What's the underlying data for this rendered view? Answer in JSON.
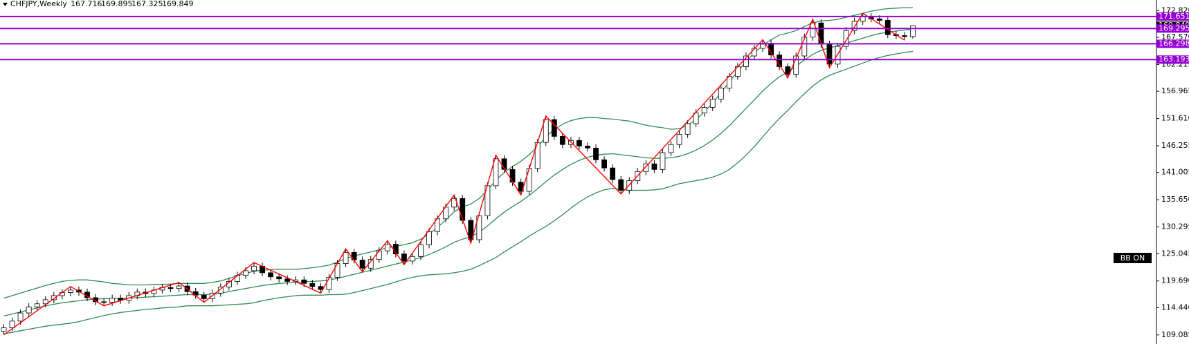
{
  "chart_data": {
    "type": "candlestick",
    "title": "CHFJPY,Weekly",
    "open": [
      109.8,
      110.5,
      111.8,
      113.4,
      114.6,
      115.2,
      116.0,
      116.8,
      117.4,
      117.9,
      117.5,
      116.4,
      115.6,
      115.5,
      116.3,
      115.9,
      116.8,
      117.5,
      117.2,
      117.9,
      118.4,
      118.2,
      118.7,
      117.6,
      116.9,
      116.2,
      117.3,
      118.5,
      119.6,
      120.8,
      121.7,
      122.6,
      121.3,
      120.5,
      120.1,
      119.6,
      119.9,
      119.2,
      118.6,
      118.0,
      120.4,
      123.1,
      125.3,
      123.8,
      122.2,
      123.9,
      125.6,
      126.9,
      125.0,
      123.6,
      124.5,
      126.8,
      129.4,
      131.9,
      134.2,
      135.9,
      131.6,
      127.8,
      132.5,
      138.4,
      143.7,
      141.6,
      139.1,
      137.3,
      141.8,
      146.9,
      151.4,
      148.1,
      146.5,
      147.3,
      146.2,
      145.8,
      143.5,
      141.9,
      139.6,
      137.5,
      139.4,
      141.2,
      142.7,
      141.6,
      144.9,
      146.5,
      148.5,
      150.6,
      152.7,
      153.8,
      155.4,
      157.6,
      159.9,
      161.8,
      163.9,
      165.4,
      166.4,
      164.1,
      161.8,
      160.3,
      163.9,
      167.6,
      170.4,
      166.2,
      162.3,
      165.8,
      168.9,
      170.7,
      171.6,
      171.2,
      170.9,
      168.1,
      167.9,
      167.716
    ],
    "high": [
      111.2,
      112.5,
      114.1,
      115.3,
      115.9,
      116.7,
      117.5,
      118.1,
      118.6,
      118.6,
      118.2,
      117.1,
      116.3,
      117.0,
      117.0,
      117.5,
      118.2,
      118.2,
      118.6,
      119.1,
      119.1,
      119.4,
      119.4,
      118.3,
      117.6,
      118.0,
      119.2,
      120.3,
      121.5,
      122.4,
      123.3,
      123.3,
      122.0,
      121.2,
      120.8,
      120.6,
      120.6,
      119.9,
      119.3,
      121.1,
      123.8,
      126.0,
      126.0,
      124.5,
      124.6,
      126.3,
      127.6,
      127.6,
      125.7,
      125.2,
      127.5,
      130.1,
      132.6,
      134.9,
      136.6,
      136.6,
      132.3,
      133.2,
      139.1,
      144.4,
      144.4,
      142.3,
      139.8,
      142.5,
      147.6,
      152.1,
      152.1,
      148.8,
      148.0,
      148.0,
      146.9,
      146.5,
      144.2,
      142.6,
      140.3,
      140.1,
      141.9,
      143.4,
      143.4,
      145.6,
      147.2,
      149.2,
      151.3,
      153.4,
      154.5,
      156.1,
      158.3,
      160.6,
      162.5,
      164.6,
      166.1,
      167.1,
      167.1,
      164.8,
      162.5,
      164.6,
      168.3,
      171.1,
      171.1,
      166.9,
      166.5,
      169.6,
      171.4,
      172.3,
      172.3,
      171.9,
      171.6,
      168.8,
      168.6,
      169.895
    ],
    "low": [
      109.1,
      109.8,
      111.1,
      112.7,
      113.9,
      114.5,
      115.3,
      116.1,
      116.7,
      116.8,
      115.7,
      114.9,
      114.8,
      114.8,
      115.2,
      115.2,
      116.1,
      116.5,
      116.5,
      117.2,
      117.5,
      117.5,
      116.9,
      116.2,
      115.5,
      115.5,
      116.6,
      117.8,
      118.9,
      120.1,
      121.0,
      120.6,
      119.8,
      119.4,
      118.9,
      118.9,
      118.5,
      117.9,
      117.3,
      117.3,
      119.7,
      122.4,
      123.1,
      121.5,
      121.5,
      123.2,
      124.9,
      124.3,
      122.9,
      122.9,
      123.8,
      126.1,
      128.7,
      131.2,
      133.5,
      130.9,
      127.1,
      127.1,
      131.8,
      137.7,
      140.9,
      138.4,
      136.6,
      136.6,
      141.1,
      146.2,
      147.4,
      145.8,
      145.8,
      145.5,
      145.1,
      142.8,
      141.2,
      138.9,
      136.8,
      136.8,
      138.7,
      140.5,
      140.9,
      140.9,
      144.2,
      145.8,
      147.8,
      149.9,
      152.0,
      153.1,
      154.7,
      156.9,
      159.2,
      161.1,
      163.2,
      164.7,
      163.4,
      161.1,
      159.6,
      159.6,
      163.2,
      166.9,
      165.5,
      161.6,
      161.6,
      165.1,
      168.2,
      170.0,
      170.5,
      170.2,
      167.4,
      167.2,
      167.0,
      167.325
    ],
    "close": [
      110.5,
      111.8,
      113.4,
      114.6,
      115.2,
      116.0,
      116.8,
      117.4,
      117.9,
      117.5,
      116.4,
      115.6,
      115.5,
      116.3,
      115.9,
      116.8,
      117.5,
      117.2,
      117.9,
      118.4,
      118.2,
      118.7,
      117.6,
      116.9,
      116.2,
      117.3,
      118.5,
      119.6,
      120.8,
      121.7,
      122.6,
      121.3,
      120.5,
      120.1,
      119.6,
      119.9,
      119.2,
      118.6,
      118.0,
      120.4,
      123.1,
      125.3,
      123.8,
      122.2,
      123.9,
      125.6,
      126.9,
      125.0,
      123.6,
      124.5,
      126.8,
      129.4,
      131.9,
      134.2,
      135.9,
      131.6,
      127.8,
      132.5,
      138.4,
      143.7,
      141.6,
      139.1,
      137.3,
      141.8,
      146.9,
      151.4,
      148.1,
      146.5,
      147.3,
      146.2,
      145.8,
      143.5,
      141.9,
      139.6,
      137.5,
      139.4,
      141.2,
      142.7,
      141.6,
      144.9,
      146.5,
      148.5,
      150.6,
      152.7,
      153.8,
      155.4,
      157.6,
      159.9,
      161.8,
      163.9,
      165.4,
      166.4,
      164.1,
      161.8,
      160.3,
      163.9,
      167.6,
      170.4,
      166.2,
      162.3,
      165.8,
      168.9,
      170.7,
      171.6,
      171.2,
      170.9,
      168.1,
      167.9,
      167.7,
      169.849
    ],
    "up_color": "#ffffff",
    "down_color": "#000000",
    "bands": {
      "color": "#2e8b57",
      "upper": [
        116.3,
        116.8,
        117.3,
        117.8,
        118.3,
        118.8,
        119.2,
        119.6,
        119.8,
        119.9,
        119.9,
        119.7,
        119.5,
        119.2,
        119.1,
        118.9,
        118.9,
        118.9,
        119.0,
        119.0,
        119.1,
        119.2,
        119.2,
        119.2,
        119.2,
        119.4,
        119.7,
        120.2,
        120.7,
        121.2,
        121.6,
        121.8,
        121.9,
        122.0,
        122.0,
        122.0,
        122.1,
        122.3,
        122.5,
        122.8,
        123.4,
        124.1,
        124.6,
        125.0,
        125.4,
        125.8,
        126.2,
        126.5,
        126.8,
        127.2,
        127.9,
        128.9,
        130.2,
        131.7,
        133.3,
        134.2,
        134.8,
        135.9,
        137.5,
        139.5,
        141.0,
        142.2,
        143.2,
        144.5,
        146.1,
        148.0,
        149.5,
        150.5,
        151.2,
        151.6,
        151.8,
        151.8,
        151.6,
        151.5,
        151.3,
        151.1,
        150.7,
        150.3,
        150.0,
        149.8,
        149.5,
        149.6,
        150.3,
        151.4,
        152.9,
        154.7,
        156.7,
        158.8,
        160.9,
        162.8,
        164.5,
        166.0,
        167.1,
        168.0,
        168.4,
        168.9,
        169.7,
        170.4,
        170.8,
        170.9,
        171.1,
        171.5,
        171.9,
        172.3,
        172.7,
        173.0,
        173.2,
        173.3,
        173.4,
        173.4
      ],
      "middle": [
        112.8,
        113.2,
        113.6,
        114.0,
        114.4,
        114.8,
        115.1,
        115.4,
        115.6,
        115.8,
        116.0,
        116.1,
        116.2,
        116.2,
        116.3,
        116.3,
        116.4,
        116.5,
        116.6,
        116.7,
        116.8,
        116.9,
        117.0,
        117.0,
        117.0,
        117.1,
        117.3,
        117.6,
        117.9,
        118.2,
        118.5,
        118.8,
        119.0,
        119.2,
        119.3,
        119.4,
        119.5,
        119.6,
        119.7,
        119.9,
        120.2,
        120.6,
        121.0,
        121.4,
        121.8,
        122.2,
        122.6,
        123.0,
        123.4,
        123.8,
        124.3,
        124.9,
        125.6,
        126.4,
        127.3,
        127.9,
        128.4,
        129.3,
        130.5,
        131.9,
        133.2,
        134.3,
        135.3,
        136.5,
        137.8,
        139.2,
        140.5,
        141.6,
        142.6,
        143.4,
        144.0,
        144.4,
        144.6,
        144.7,
        144.5,
        144.3,
        144.1,
        143.9,
        143.8,
        143.8,
        143.9,
        144.2,
        144.7,
        145.4,
        146.3,
        147.4,
        148.7,
        150.2,
        151.9,
        153.6,
        155.3,
        157.0,
        158.5,
        159.8,
        160.8,
        161.9,
        163.1,
        164.2,
        165.0,
        165.5,
        165.9,
        166.4,
        166.9,
        167.4,
        167.9,
        168.3,
        168.6,
        168.8,
        169.0,
        169.1
      ],
      "lower": [
        109.3,
        109.6,
        109.9,
        110.2,
        110.5,
        110.8,
        111.0,
        111.2,
        111.4,
        111.7,
        112.1,
        112.5,
        112.9,
        113.2,
        113.5,
        113.7,
        113.9,
        114.1,
        114.2,
        114.4,
        114.5,
        114.6,
        114.8,
        114.8,
        114.8,
        114.8,
        114.9,
        115.0,
        115.1,
        115.2,
        115.4,
        115.8,
        116.1,
        116.4,
        116.6,
        116.8,
        116.9,
        116.9,
        116.9,
        117.0,
        117.0,
        117.1,
        117.4,
        117.8,
        118.2,
        118.6,
        119.0,
        119.5,
        120.0,
        120.4,
        120.7,
        120.9,
        121.0,
        121.1,
        121.3,
        121.6,
        122.0,
        122.7,
        123.5,
        124.3,
        125.4,
        126.4,
        127.4,
        128.5,
        129.5,
        130.4,
        131.5,
        132.7,
        134.0,
        135.2,
        136.2,
        137.0,
        137.6,
        137.9,
        137.7,
        137.5,
        137.5,
        137.5,
        137.6,
        137.8,
        138.3,
        138.8,
        139.1,
        139.4,
        139.7,
        140.1,
        140.7,
        141.6,
        142.9,
        144.4,
        146.1,
        148.0,
        149.9,
        151.6,
        153.2,
        154.9,
        156.5,
        158.0,
        159.2,
        160.1,
        160.7,
        161.3,
        161.9,
        162.5,
        163.1,
        163.6,
        164.0,
        164.3,
        164.6,
        164.8
      ]
    },
    "zigzag_color": "#ff0000",
    "levels": [
      171.651,
      169.295,
      166.298,
      163.193
    ],
    "level_color": "#9400d3",
    "annotation": "BB ON",
    "ylim": [
      107.3,
      174.9
    ],
    "yticks": [
      {
        "value": 172.82,
        "label": "172.820"
      },
      {
        "value": 167.57,
        "label": "167.570"
      },
      162.215,
      156.965,
      {
        "value": 151.61,
        "label": "151.610"
      },
      146.255,
      141.005,
      {
        "value": 135.65,
        "label": "135.650"
      },
      130.295,
      125.045,
      {
        "value": 119.69,
        "label": "119.690"
      },
      {
        "value": 114.44,
        "label": "114.440"
      },
      109.085
    ]
  }
}
